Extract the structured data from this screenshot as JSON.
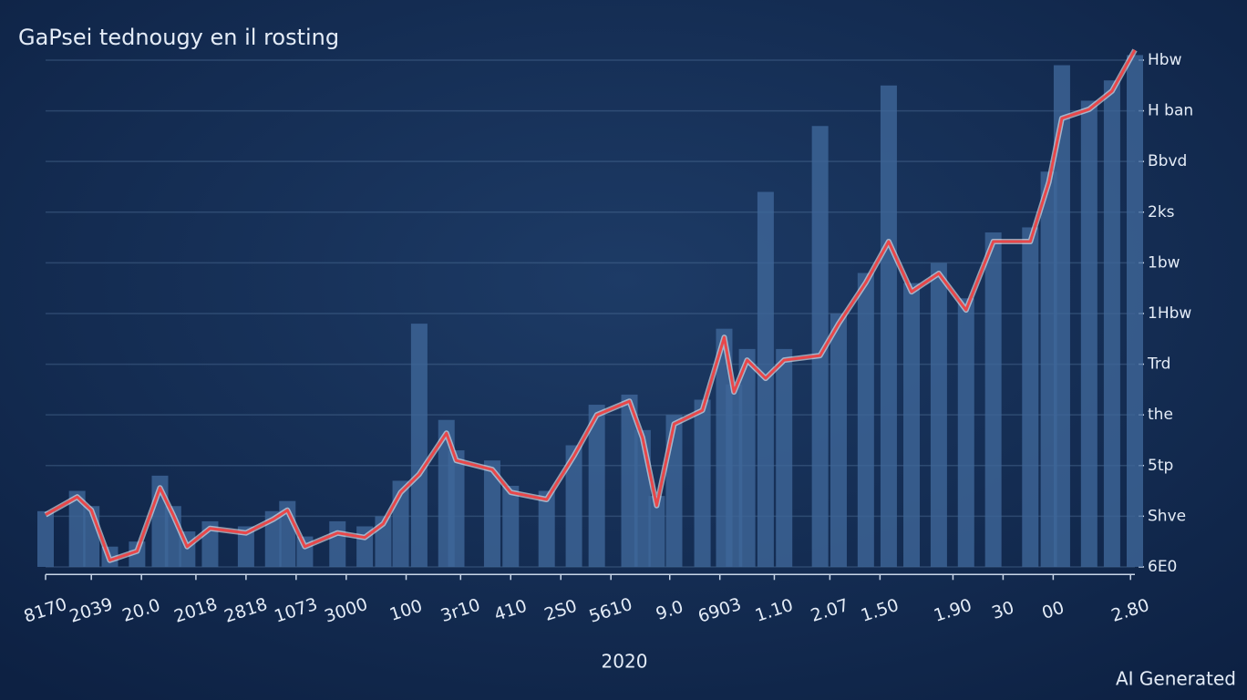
{
  "chart_data": {
    "type": "bar-line",
    "title": "GaPsei tednougy en il rosting",
    "xlabel": "2020",
    "watermark": "AI Generated",
    "x": [
      0,
      2.9,
      4.2,
      5.9,
      8.4,
      10.5,
      11.7,
      13.0,
      15.1,
      18.4,
      20.9,
      22.2,
      23.8,
      26.8,
      29.3,
      31.0,
      32.6,
      34.3,
      36.8,
      37.7,
      41.0,
      42.7,
      46.0,
      48.5,
      50.6,
      53.6,
      54.8,
      56.1,
      57.7,
      60.3,
      62.3,
      63.2,
      64.4,
      66.1,
      67.8,
      71.1,
      72.8,
      75.3,
      77.4,
      79.5,
      82.0,
      84.5,
      87.0,
      90.4,
      92.1,
      93.3,
      95.8,
      97.9,
      100
    ],
    "series": [
      {
        "kind": "bar",
        "color": "#3f6699",
        "values": [
          1.1,
          1.5,
          1.2,
          0.4,
          0.5,
          1.8,
          1.2,
          0.7,
          0.9,
          0.8,
          1.1,
          1.3,
          0.6,
          0.9,
          0.8,
          1.0,
          1.7,
          4.8,
          2.9,
          2.3,
          2.1,
          1.6,
          1.5,
          2.4,
          3.2,
          3.4,
          2.7,
          1.4,
          3.0,
          3.3,
          4.7,
          3.6,
          4.3,
          7.4,
          4.3,
          8.7,
          5.0,
          5.8,
          9.5,
          5.6,
          6.0,
          5.3,
          6.6,
          6.7,
          7.8,
          9.9,
          9.2,
          9.6,
          10.1
        ]
      },
      {
        "kind": "line",
        "color": "#e8474a",
        "values": [
          1.03,
          1.38,
          1.12,
          0.13,
          0.31,
          1.56,
          1.03,
          0.4,
          0.76,
          0.67,
          0.94,
          1.12,
          0.4,
          0.67,
          0.58,
          0.85,
          1.47,
          1.83,
          2.64,
          2.1,
          1.92,
          1.47,
          1.33,
          2.19,
          3.0,
          3.27,
          2.55,
          1.21,
          2.82,
          3.09,
          4.53,
          3.45,
          4.08,
          3.72,
          4.08,
          4.17,
          4.8,
          5.61,
          6.42,
          5.43,
          5.79,
          5.07,
          6.42,
          6.42,
          7.59,
          8.85,
          9.03,
          9.39,
          10.2
        ]
      }
    ],
    "xlim": [
      0,
      100
    ],
    "xticks": [
      {
        "value": 0,
        "label": "8170"
      },
      {
        "value": 4.2,
        "label": "2039"
      },
      {
        "value": 8.8,
        "label": "20.0"
      },
      {
        "value": 13.8,
        "label": "2018"
      },
      {
        "value": 18.4,
        "label": "2818"
      },
      {
        "value": 23.0,
        "label": "1073"
      },
      {
        "value": 27.6,
        "label": "3000"
      },
      {
        "value": 33.1,
        "label": "100"
      },
      {
        "value": 38.1,
        "label": "3r10"
      },
      {
        "value": 42.7,
        "label": "410"
      },
      {
        "value": 47.3,
        "label": "2S0"
      },
      {
        "value": 51.9,
        "label": "5610"
      },
      {
        "value": 57.3,
        "label": "9.0"
      },
      {
        "value": 61.9,
        "label": "6903"
      },
      {
        "value": 66.9,
        "label": "1.10"
      },
      {
        "value": 72.0,
        "label": "2.07"
      },
      {
        "value": 76.6,
        "label": "1.50"
      },
      {
        "value": 83.3,
        "label": "1.90"
      },
      {
        "value": 87.9,
        "label": "30"
      },
      {
        "value": 92.5,
        "label": "00"
      },
      {
        "value": 99.6,
        "label": "2.80"
      }
    ],
    "ylim": [
      -0.15,
      10.3
    ],
    "yticks": [
      {
        "value": 0,
        "label": "6E0"
      },
      {
        "value": 1,
        "label": "Shve"
      },
      {
        "value": 2,
        "label": "5tp"
      },
      {
        "value": 3,
        "label": "the"
      },
      {
        "value": 4,
        "label": "Trd"
      },
      {
        "value": 5,
        "label": "1Hbw"
      },
      {
        "value": 6,
        "label": "1bw"
      },
      {
        "value": 7,
        "label": "2ks"
      },
      {
        "value": 8,
        "label": "Bbvd"
      },
      {
        "value": 9,
        "label": "H ban"
      },
      {
        "value": 10,
        "label": "Hbw"
      }
    ],
    "grid": true
  }
}
